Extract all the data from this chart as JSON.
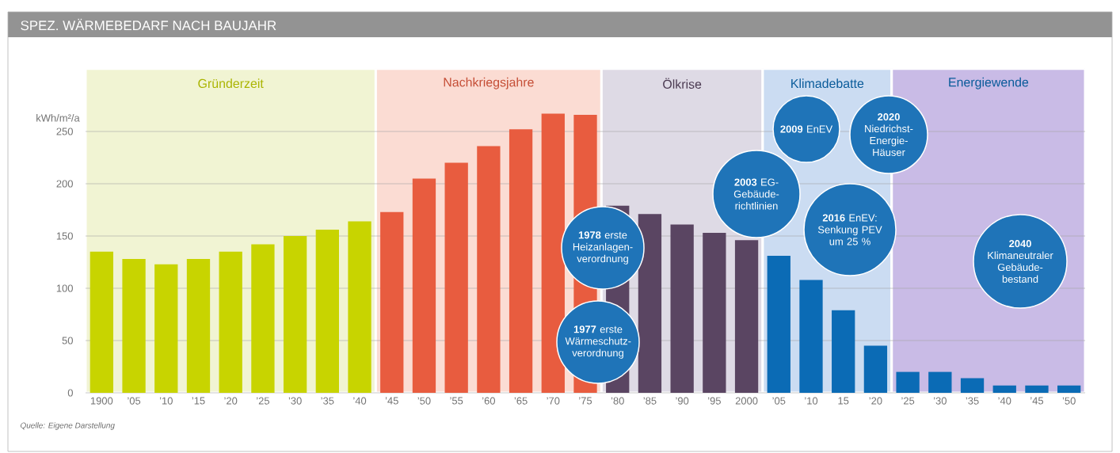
{
  "chart_data": {
    "type": "bar",
    "title": "SPEZ. WÄRMEBEDARF NACH BAUJAHR",
    "ylabel": "kWh/m²/a",
    "x": [
      1900,
      1905,
      1910,
      1915,
      1920,
      1925,
      1930,
      1935,
      1940,
      1945,
      1950,
      1955,
      1960,
      1965,
      1970,
      1975,
      1980,
      1985,
      1990,
      1995,
      2000,
      2005,
      2010,
      2015,
      2020,
      2025,
      2030,
      2035,
      2040,
      2045,
      2050
    ],
    "values": [
      135,
      128,
      123,
      128,
      135,
      142,
      150,
      156,
      164,
      173,
      205,
      220,
      236,
      252,
      267,
      266,
      179,
      171,
      161,
      153,
      146,
      131,
      108,
      79,
      45,
      20,
      20,
      14,
      7,
      7,
      7
    ],
    "colors": [
      "#c8d400",
      "#c8d400",
      "#c8d400",
      "#c8d400",
      "#c8d400",
      "#c8d400",
      "#c8d400",
      "#c8d400",
      "#c8d400",
      "#e85c3f",
      "#e85c3f",
      "#e85c3f",
      "#e85c3f",
      "#e85c3f",
      "#e85c3f",
      "#e85c3f",
      "#5a4562",
      "#5a4562",
      "#5a4562",
      "#5a4562",
      "#5a4562",
      "#0b6bb5",
      "#0b6bb5",
      "#0b6bb5",
      "#0b6bb5",
      "#0b6bb5",
      "#0b6bb5",
      "#0b6bb5",
      "#0b6bb5",
      "#0b6bb5",
      "#0b6bb5"
    ],
    "xlim": [
      1897.5,
      2052.5
    ],
    "xticks": [
      1900,
      {
        "value": 1905,
        "label": "’05"
      },
      {
        "value": 1910,
        "label": "’10"
      },
      {
        "value": 1915,
        "label": "’15"
      },
      {
        "value": 1920,
        "label": "’20"
      },
      {
        "value": 1925,
        "label": "’25"
      },
      {
        "value": 1930,
        "label": "’30"
      },
      {
        "value": 1935,
        "label": "’35"
      },
      {
        "value": 1940,
        "label": "’40"
      },
      {
        "value": 1945,
        "label": "’45"
      },
      {
        "value": 1950,
        "label": "’50"
      },
      {
        "value": 1955,
        "label": "’55"
      },
      {
        "value": 1960,
        "label": "’60"
      },
      {
        "value": 1965,
        "label": "’65"
      },
      {
        "value": 1970,
        "label": "’70"
      },
      {
        "value": 1975,
        "label": "’75"
      },
      {
        "value": 1980,
        "label": "’80"
      },
      {
        "value": 1985,
        "label": "’85"
      },
      {
        "value": 1990,
        "label": "’90"
      },
      {
        "value": 1995,
        "label": "’95"
      },
      2000,
      {
        "value": 2005,
        "label": "’05"
      },
      {
        "value": 2010,
        "label": "’10"
      },
      {
        "value": 2015,
        "label": "15"
      },
      {
        "value": 2020,
        "label": "’20"
      },
      {
        "value": 2025,
        "label": "’25"
      },
      {
        "value": 2030,
        "label": "’30"
      },
      {
        "value": 2035,
        "label": "’35"
      },
      {
        "value": 2040,
        "label": "’40"
      },
      {
        "value": 2045,
        "label": "’45"
      },
      {
        "value": 2050,
        "label": "’50"
      }
    ],
    "ylim": [
      0,
      310
    ],
    "yticks": [
      0,
      50,
      100,
      150,
      200,
      250
    ],
    "grid": "y",
    "bands": [
      {
        "axis": "x",
        "from": 1897.5,
        "to": 1942.5,
        "label": "Gründerzeit",
        "color": "#f1f4d3"
      },
      {
        "axis": "x",
        "from": 1942.5,
        "to": 1977.5,
        "label": "Nachkriegsjahre",
        "color": "#fbdcd3"
      },
      {
        "axis": "x",
        "from": 1977.5,
        "to": 2002.5,
        "label": "Ölkrise",
        "color": "#dedae5"
      },
      {
        "axis": "x",
        "from": 2002.5,
        "to": 2022.5,
        "label": "Klimadebatte",
        "color": "#cbdcf2"
      },
      {
        "axis": "x",
        "from": 2022.5,
        "to": 2052.5,
        "label": "Energiewende",
        "color": "#c9bbe6"
      }
    ],
    "annotations": [
      "Quelle: Eigene Darstellung",
      "**1978** erste Heizanlagen-verordnung",
      "**1977** erste Wärmeschutz-verordnung",
      "**2003** EG-Gebäude-richtlinien",
      "**2009** EnEV",
      "**2016** EnEV: Senkung PEV um 25 %",
      "**2020** Niedrichst-Energie-Häuser",
      "**2040** Klimaneutraler Gebäude-bestand"
    ]
  }
}
